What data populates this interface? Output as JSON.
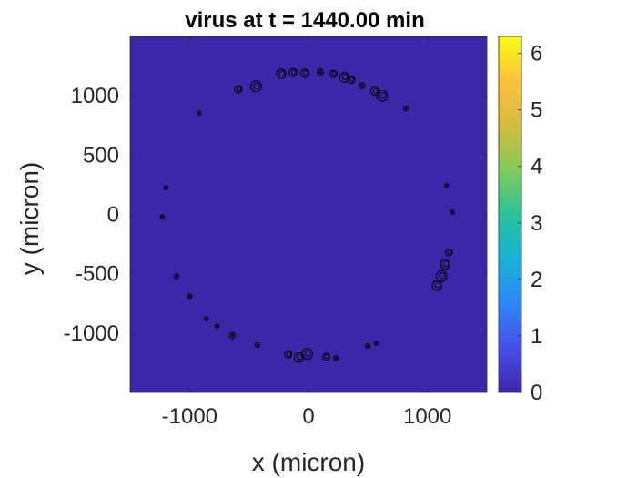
{
  "chart_data": {
    "type": "heatmap",
    "title": "virus at t = 1440.00 min",
    "xlabel": "x (micron)",
    "ylabel": "y (micron)",
    "xlim": [
      -1500,
      1500
    ],
    "ylim": [
      -1500,
      1500
    ],
    "x_ticks": [
      {
        "value": -1000,
        "label": "-1000"
      },
      {
        "value": 0,
        "label": "0"
      },
      {
        "value": 1000,
        "label": "1000"
      }
    ],
    "y_ticks": [
      {
        "value": 1000,
        "label": "1000"
      },
      {
        "value": 500,
        "label": "500"
      },
      {
        "value": 0,
        "label": "0"
      },
      {
        "value": -500,
        "label": "-500"
      },
      {
        "value": -1000,
        "label": "-1000"
      }
    ],
    "background_value": 0,
    "grid": false,
    "colorbar": {
      "position": "right",
      "range": [
        0,
        6.3
      ],
      "ticks": [
        {
          "value": 0,
          "label": "0"
        },
        {
          "value": 1,
          "label": "1"
        },
        {
          "value": 2,
          "label": "2"
        },
        {
          "value": 3,
          "label": "3"
        },
        {
          "value": 4,
          "label": "4"
        },
        {
          "value": 5,
          "label": "5"
        },
        {
          "value": 6,
          "label": "6"
        }
      ],
      "colormap": [
        "#3e26a8",
        "#4550e6",
        "#2e87f7",
        "#19b2d6",
        "#29c29a",
        "#82cc5b",
        "#d6bb40",
        "#fdc13c",
        "#f9fb15"
      ]
    },
    "spots": [
      {
        "x": -590,
        "y": 1055,
        "r": 30
      },
      {
        "x": -440,
        "y": 1080,
        "r": 45
      },
      {
        "x": -230,
        "y": 1185,
        "r": 40
      },
      {
        "x": -130,
        "y": 1195,
        "r": 35
      },
      {
        "x": -30,
        "y": 1190,
        "r": 35
      },
      {
        "x": 100,
        "y": 1200,
        "r": 25
      },
      {
        "x": 210,
        "y": 1185,
        "r": 30
      },
      {
        "x": 300,
        "y": 1155,
        "r": 40
      },
      {
        "x": 360,
        "y": 1135,
        "r": 30
      },
      {
        "x": 450,
        "y": 1085,
        "r": 25
      },
      {
        "x": 560,
        "y": 1040,
        "r": 35
      },
      {
        "x": 620,
        "y": 1000,
        "r": 45
      },
      {
        "x": 820,
        "y": 895,
        "r": 20
      },
      {
        "x": -920,
        "y": 855,
        "r": 15
      },
      {
        "x": -1200,
        "y": 225,
        "r": 15
      },
      {
        "x": -1230,
        "y": -20,
        "r": 15
      },
      {
        "x": 1160,
        "y": 245,
        "r": 15
      },
      {
        "x": 1210,
        "y": 20,
        "r": 15
      },
      {
        "x": 1180,
        "y": -320,
        "r": 30
      },
      {
        "x": 1150,
        "y": -420,
        "r": 40
      },
      {
        "x": 1120,
        "y": -520,
        "r": 45
      },
      {
        "x": 1080,
        "y": -600,
        "r": 40
      },
      {
        "x": -1110,
        "y": -520,
        "r": 20
      },
      {
        "x": -1000,
        "y": -690,
        "r": 20
      },
      {
        "x": -860,
        "y": -880,
        "r": 15
      },
      {
        "x": -770,
        "y": -940,
        "r": 15
      },
      {
        "x": -640,
        "y": -1020,
        "r": 25
      },
      {
        "x": -430,
        "y": -1100,
        "r": 20
      },
      {
        "x": -170,
        "y": -1180,
        "r": 30
      },
      {
        "x": -80,
        "y": -1205,
        "r": 40
      },
      {
        "x": -10,
        "y": -1175,
        "r": 45
      },
      {
        "x": 150,
        "y": -1200,
        "r": 30
      },
      {
        "x": 230,
        "y": -1210,
        "r": 20
      },
      {
        "x": 500,
        "y": -1110,
        "r": 20
      },
      {
        "x": 570,
        "y": -1085,
        "r": 15
      }
    ]
  }
}
